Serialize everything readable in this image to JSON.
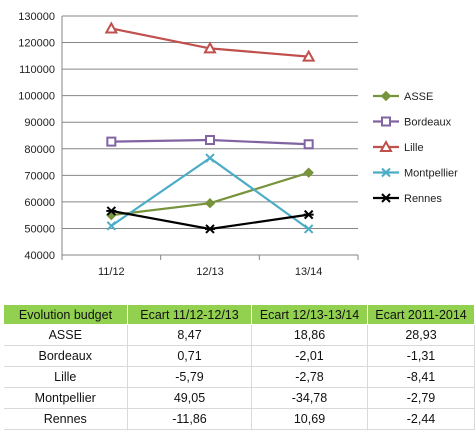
{
  "chart_data": {
    "type": "line",
    "categories": [
      "11/12",
      "12/13",
      "13/14"
    ],
    "ylim": [
      40000,
      130000
    ],
    "yticks": [
      40000,
      50000,
      60000,
      70000,
      80000,
      90000,
      100000,
      110000,
      120000,
      130000
    ],
    "grid": true,
    "legend": "right",
    "series": [
      {
        "name": "ASSE",
        "values": [
          55000,
          59500,
          71000
        ],
        "color": "#77933c",
        "marker": "diamond"
      },
      {
        "name": "Bordeaux",
        "values": [
          82700,
          83300,
          81700
        ],
        "color": "#8064a2",
        "marker": "square"
      },
      {
        "name": "Lille",
        "values": [
          125300,
          117800,
          114700
        ],
        "color": "#c0504d",
        "marker": "triangle"
      },
      {
        "name": "Montpellier",
        "values": [
          51000,
          76500,
          49800
        ],
        "color": "#4bacc6",
        "marker": "x"
      },
      {
        "name": "Rennes",
        "values": [
          56600,
          49800,
          55200
        ],
        "color": "#000000",
        "marker": "star"
      }
    ]
  },
  "table": {
    "headers": [
      "Evolution budget",
      "Ecart 11/12-12/13",
      "Ecart 12/13-13/14",
      "Ecart 2011-2014"
    ],
    "rows": [
      [
        "ASSE",
        "8,47",
        "18,86",
        "28,93"
      ],
      [
        "Bordeaux",
        "0,71",
        "-2,01",
        "-1,31"
      ],
      [
        "Lille",
        "-5,79",
        "-2,78",
        "-8,41"
      ],
      [
        "Montpellier",
        "49,05",
        "-34,78",
        "-2,79"
      ],
      [
        "Rennes",
        "-11,86",
        "10,69",
        "-2,44"
      ]
    ],
    "header_color": "#92d050"
  }
}
